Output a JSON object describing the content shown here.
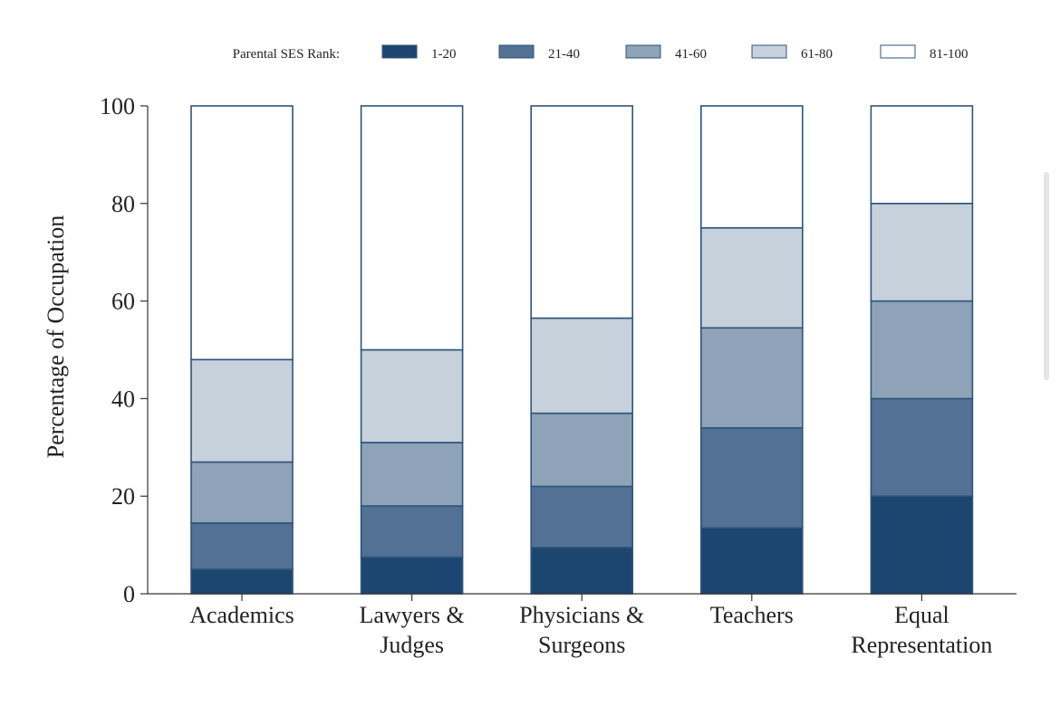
{
  "chart_data": {
    "type": "bar",
    "stacked": true,
    "legend_title": "Parental SES Rank:",
    "legend_position": "top",
    "categories": [
      [
        "Academics"
      ],
      [
        "Lawyers &",
        "Judges"
      ],
      [
        "Physicians &",
        "Surgeons"
      ],
      [
        "Teachers"
      ],
      [
        "Equal",
        "Representation"
      ]
    ],
    "series": [
      {
        "name": "1-20",
        "color": "#1c4570",
        "values": [
          5,
          7.5,
          9.5,
          13.5,
          20
        ]
      },
      {
        "name": "21-40",
        "color": "#527194",
        "values": [
          9.5,
          10.5,
          12.5,
          20.5,
          20
        ]
      },
      {
        "name": "41-60",
        "color": "#8ea3b8",
        "values": [
          12.5,
          13,
          15,
          20.5,
          20
        ]
      },
      {
        "name": "61-80",
        "color": "#c6d1dc",
        "values": [
          21,
          19,
          19.5,
          20.5,
          20
        ]
      },
      {
        "name": "81-100",
        "color": "#ffffff",
        "values": [
          52,
          50,
          43.5,
          25,
          20
        ]
      }
    ],
    "ylabel": "Percentage of Occupation",
    "xlabel": "",
    "ylim": [
      0,
      100
    ],
    "yticks": [
      0,
      20,
      40,
      60,
      80,
      100
    ],
    "grid": false,
    "bar_outline_color": "#2f5479"
  }
}
